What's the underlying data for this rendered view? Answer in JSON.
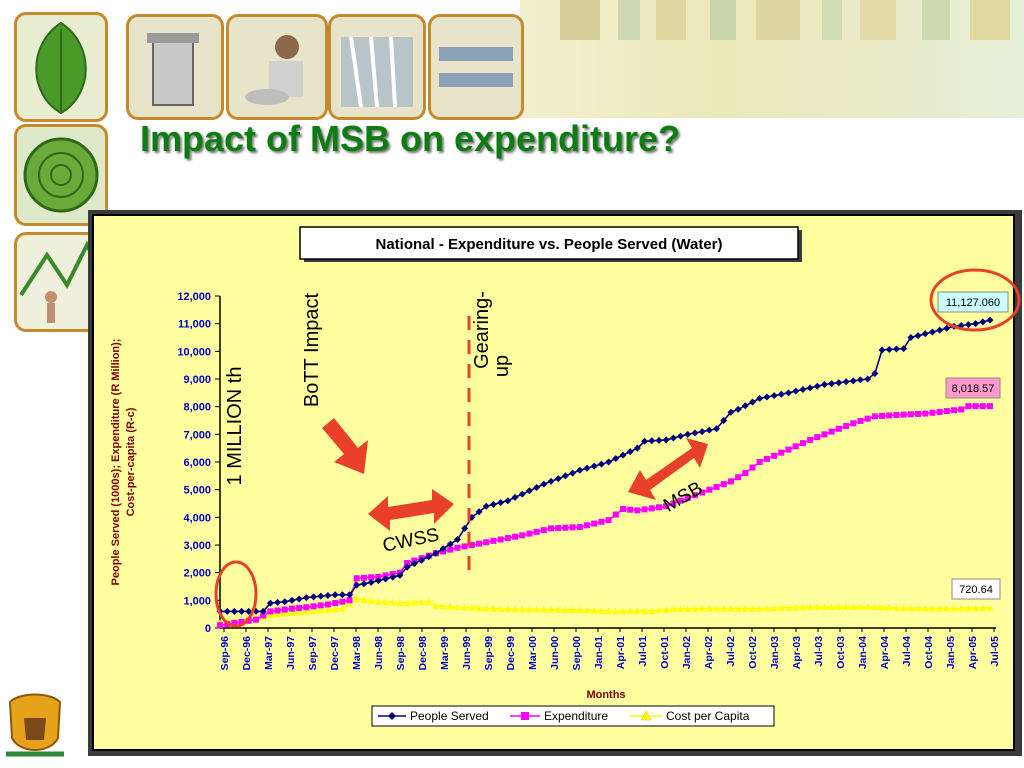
{
  "slide": {
    "title": "Impact of MSB on expenditure?"
  },
  "chart_data": {
    "type": "line",
    "title": "National - Expenditure vs. People Served (Water)",
    "xlabel": "Months",
    "ylabel_line1": "People Served (1000s); Expenditure (R Million);",
    "ylabel_line2": "Cost-per-capita (R-c)",
    "ylim": [
      0,
      12000
    ],
    "yticks": [
      "0",
      "1,000",
      "2,000",
      "3,000",
      "4,000",
      "5,000",
      "6,000",
      "7,000",
      "8,000",
      "9,000",
      "10,000",
      "11,000",
      "12,000"
    ],
    "x_start": "Sep-96",
    "x_count": 108,
    "xtick_labels": [
      "Sep-96",
      "Dec-96",
      "Mar-97",
      "Jun-97",
      "Sep-97",
      "Dec-97",
      "Mar-98",
      "Jun-98",
      "Sep-98",
      "Dec-98",
      "Mar-99",
      "Jun-99",
      "Sep-99",
      "Dec-99",
      "Mar-00",
      "Jun-00",
      "Sep-00",
      "Jan-01",
      "Apr-01",
      "Jul-01",
      "Oct-01",
      "Jan-02",
      "Apr-02",
      "Jul-02",
      "Oct-02",
      "Jan-03",
      "Apr-03",
      "Jul-03",
      "Oct-03",
      "Jan-04",
      "Apr-04",
      "Jul-04",
      "Oct-04",
      "Jan-05",
      "Apr-05",
      "Jul-05"
    ],
    "legend": [
      "People Served",
      "Expenditure",
      "Cost per Capita"
    ],
    "legend_position": "bottom",
    "colors": {
      "people": "#000080",
      "expenditure": "#ff00ff",
      "cost": "#ffff00",
      "axis_text": "#0000cc",
      "label_text": "#800000",
      "annotation_red": "#e8402a",
      "highlight_circle": "#e8402a"
    },
    "series": [
      {
        "name": "People Served",
        "anchors": [
          [
            0,
            600
          ],
          [
            6,
            600
          ],
          [
            7,
            900
          ],
          [
            9,
            950
          ],
          [
            12,
            1100
          ],
          [
            16,
            1200
          ],
          [
            18,
            1200
          ],
          [
            19,
            1550
          ],
          [
            21,
            1650
          ],
          [
            25,
            1900
          ],
          [
            26,
            2200
          ],
          [
            30,
            2700
          ],
          [
            33,
            3200
          ],
          [
            35,
            4000
          ],
          [
            37,
            4400
          ],
          [
            40,
            4600
          ],
          [
            45,
            5200
          ],
          [
            50,
            5700
          ],
          [
            54,
            6000
          ],
          [
            58,
            6500
          ],
          [
            59,
            6750
          ],
          [
            62,
            6800
          ],
          [
            65,
            7000
          ],
          [
            69,
            7200
          ],
          [
            71,
            7800
          ],
          [
            72,
            7900
          ],
          [
            75,
            8300
          ],
          [
            79,
            8500
          ],
          [
            84,
            8800
          ],
          [
            90,
            9000
          ],
          [
            91,
            9200
          ],
          [
            92,
            10050
          ],
          [
            95,
            10100
          ],
          [
            96,
            10500
          ],
          [
            99,
            10700
          ],
          [
            102,
            10900
          ],
          [
            105,
            11000
          ],
          [
            107,
            11127
          ]
        ]
      },
      {
        "name": "Expenditure",
        "anchors": [
          [
            0,
            100
          ],
          [
            5,
            300
          ],
          [
            7,
            600
          ],
          [
            10,
            700
          ],
          [
            12,
            750
          ],
          [
            15,
            850
          ],
          [
            18,
            1000
          ],
          [
            19,
            1800
          ],
          [
            22,
            1850
          ],
          [
            25,
            2000
          ],
          [
            26,
            2350
          ],
          [
            30,
            2700
          ],
          [
            33,
            2900
          ],
          [
            37,
            3100
          ],
          [
            42,
            3350
          ],
          [
            46,
            3600
          ],
          [
            50,
            3650
          ],
          [
            54,
            3900
          ],
          [
            56,
            4300
          ],
          [
            58,
            4250
          ],
          [
            62,
            4400
          ],
          [
            65,
            4700
          ],
          [
            69,
            5100
          ],
          [
            71,
            5300
          ],
          [
            73,
            5600
          ],
          [
            75,
            6000
          ],
          [
            79,
            6450
          ],
          [
            82,
            6800
          ],
          [
            85,
            7100
          ],
          [
            88,
            7400
          ],
          [
            91,
            7650
          ],
          [
            94,
            7700
          ],
          [
            98,
            7750
          ],
          [
            103,
            7900
          ],
          [
            104,
            8018
          ],
          [
            107,
            8018
          ]
        ]
      },
      {
        "name": "Cost per Capita",
        "anchors": [
          [
            0,
            180
          ],
          [
            4,
            320
          ],
          [
            8,
            500
          ],
          [
            13,
            620
          ],
          [
            17,
            700
          ],
          [
            19,
            1050
          ],
          [
            22,
            950
          ],
          [
            26,
            900
          ],
          [
            29,
            950
          ],
          [
            30,
            800
          ],
          [
            33,
            750
          ],
          [
            40,
            680
          ],
          [
            50,
            650
          ],
          [
            55,
            600
          ],
          [
            60,
            620
          ],
          [
            63,
            680
          ],
          [
            67,
            700
          ],
          [
            75,
            700
          ],
          [
            80,
            740
          ],
          [
            85,
            760
          ],
          [
            90,
            760
          ],
          [
            95,
            720
          ],
          [
            100,
            700
          ],
          [
            107,
            720
          ]
        ]
      }
    ],
    "end_labels": {
      "people": "11,127.060",
      "expenditure": "8,018.57",
      "cost": "720.64"
    },
    "annotations": {
      "million": "1 MILLION th",
      "bott": "BoTT Impact",
      "gearing_line1": "Gearing-",
      "gearing_line2": "up",
      "cwss": "CWSS",
      "msb": "MSB"
    }
  }
}
